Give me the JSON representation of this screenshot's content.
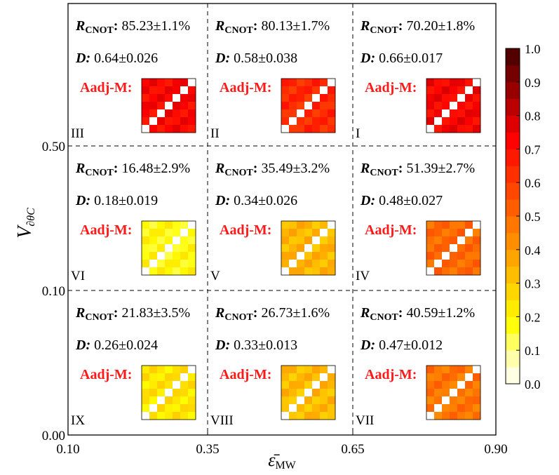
{
  "chart_data": {
    "type": "heatmap",
    "xlabel": "ε̄",
    "xlabel_sub": "MW",
    "ylabel": "V",
    "ylabel_sub": "∂θC",
    "x_ticks": [
      "0.10",
      "0.35",
      "0.65",
      "0.90"
    ],
    "y_ticks": [
      "0.50",
      "0.10",
      "0.00"
    ],
    "colorbar": {
      "ticks": [
        "0.0",
        "0.1",
        "0.2",
        "0.3",
        "0.4",
        "0.5",
        "0.6",
        "0.7",
        "0.8",
        "0.9",
        "1.0"
      ],
      "stops": [
        "#ffffff",
        "#ffff99",
        "#ffff00",
        "#ffd700",
        "#ffaa00",
        "#ff7f00",
        "#ff5500",
        "#ff2a00",
        "#ff0000",
        "#c00000",
        "#800000",
        "#400000"
      ]
    },
    "label_r": "R",
    "label_r_sub": "CNOT",
    "label_d": "D",
    "label_aadj": "Aadj-M:",
    "grid_size": 7,
    "cells": [
      {
        "id": "III",
        "R": "85.23±1.1%",
        "D": "0.64±0.026",
        "level": 0.72
      },
      {
        "id": "II",
        "R": "80.13±1.7%",
        "D": "0.58±0.038",
        "level": 0.64
      },
      {
        "id": "I",
        "R": "70.20±1.8%",
        "D": "0.66±0.017",
        "level": 0.73
      },
      {
        "id": "VI",
        "R": "16.48±2.9%",
        "D": "0.18±0.019",
        "level": 0.19
      },
      {
        "id": "V",
        "R": "35.49±3.2%",
        "D": "0.34±0.026",
        "level": 0.34
      },
      {
        "id": "IV",
        "R": "51.39±2.7%",
        "D": "0.48±0.027",
        "level": 0.5
      },
      {
        "id": "IX",
        "R": "21.83±3.5%",
        "D": "0.26±0.024",
        "level": 0.24
      },
      {
        "id": "VIII",
        "R": "26.73±1.6%",
        "D": "0.33±0.013",
        "level": 0.33
      },
      {
        "id": "VII",
        "R": "40.59±1.2%",
        "D": "0.47±0.012",
        "level": 0.48
      }
    ]
  }
}
